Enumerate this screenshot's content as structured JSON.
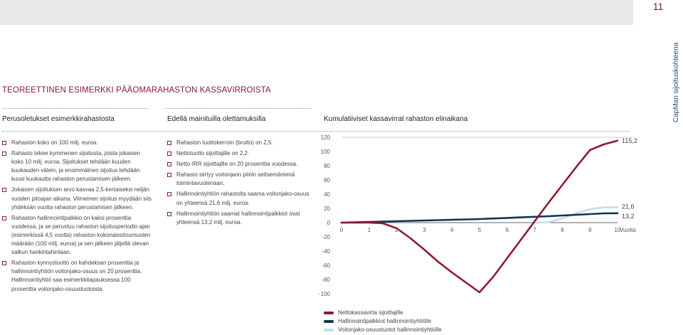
{
  "page_number": "11",
  "sidebar_label": "CapMan sijoituskohteena",
  "title": "TEOREETTINEN ESIMERKKI PÄÄOMARAHASTON KASSAVIRROISTA",
  "columns": {
    "left": "Perusoletukset esimerkkirahastosta",
    "middle": "Edellä mainituilla olettamuksilla",
    "right": "Kumulatiiviset kassavirrat rahaston elinaikana"
  },
  "left_bullets": [
    {
      "text": "Rahaston koko on 100 milj. euroa."
    },
    {
      "text": "Rahasto tekee kymmenen sijoitusta, joista jokaisen koko 10 milj. euroa. Sijoitukset tehdään kuuden kuukauden välein, ja ensimmäinen sijoitus tehdään kuusi kuukautta rahaston perustamisen jälkeen."
    },
    {
      "text": "Jokaisen sijoituksen arvo kasvaa 2,5-kertaiseksi neljän vuoden pitoajan aikana. Viimeinen sijoitus myydään siis yhdeksän vuotta rahaston perustamisen jälkeen."
    },
    {
      "text": "Rahaston hallinnointipalkkio on kaksi prosenttia vuodessa, ja se perustuu rahaston sijoitusperiodin ajan (esimerkissä 4,5 vuotta) rahaston kokonaissitoumusten määrään (100 milj. euroa) ja sen jälkeen jäljellä olevan salkun hankintahintaan."
    },
    {
      "text": "Rahaston kynnystuotto on kahdeksan prosenttia ja hallinnointiyhtiön voitonjako-osuus on 20 prosenttia. Hallinnointiyhtiö saa esimerkkitapauksessa 100 prosenttia voitonjako-osuustuotoista."
    }
  ],
  "middle_bullets": [
    {
      "text": "Rahaston tuottokerroin (brutto) on 2,5."
    },
    {
      "text": "Nettotuotto sijoittajille on 2,2."
    },
    {
      "text": "Netto-IRR sijoittajille on 20 prosenttia vuodessa."
    },
    {
      "text": "Rahasto siirtyy voitonjaon piiriin seitsemäntenä toimintavuotenaan."
    },
    {
      "text": "Hallinnointiyhtiön rahastolta saama voitonjako-osuus on yhteensä 21,6 milj. euroa."
    },
    {
      "text": "Hallinnointiyhtiön saamat hallinnointipalkkiot ovat yhteensä 13,2 milj. euroa."
    }
  ],
  "chart_data": {
    "type": "line",
    "x": [
      0,
      0.5,
      1,
      1.5,
      2,
      2.5,
      3,
      3.5,
      4,
      4.5,
      5,
      5.5,
      6,
      6.5,
      7,
      7.5,
      8,
      8.5,
      9,
      9.5,
      10
    ],
    "xticks": [
      "0",
      "1",
      "2",
      "3",
      "4",
      "5",
      "6",
      "7",
      "8",
      "9",
      "10"
    ],
    "xlabel": "Vuotta",
    "yticks": [
      "120",
      "100",
      "80",
      "60",
      "40",
      "20",
      "0",
      "-20",
      "-40",
      "-60",
      "-80",
      "-100"
    ],
    "ylim": [
      -100,
      120
    ],
    "series": [
      {
        "name": "Nettokassavirta sijoittajille",
        "color": "#8c1b2f",
        "values": [
          0,
          0,
          0,
          -1,
          -8,
          -22,
          -38,
          -55,
          -70,
          -84,
          -98,
          -76,
          -50,
          -24,
          2,
          28,
          53,
          78,
          102,
          110,
          115.2
        ]
      },
      {
        "name": "Hallinnointipalkkiot hallinnointiyhtiölle",
        "color": "#0f3450",
        "values": [
          0,
          0.5,
          1,
          1.5,
          2,
          2.5,
          3,
          3.5,
          4,
          4.5,
          5,
          5.8,
          6.6,
          7.4,
          8.2,
          9,
          10,
          11,
          12,
          13,
          13.2
        ]
      },
      {
        "name": "Voitonjako-osuustuotot hallinnointiyhtiölle",
        "color": "#c5dced",
        "values": [
          null,
          null,
          null,
          null,
          null,
          null,
          null,
          null,
          null,
          null,
          null,
          null,
          null,
          null,
          0,
          0.5,
          6,
          13,
          19,
          21.3,
          21.6
        ]
      }
    ],
    "end_labels": [
      "115,2",
      "21,6",
      "13,2"
    ]
  },
  "legend": [
    {
      "label": "Nettokassavirta sijoittajille",
      "color": "#8c1b2f"
    },
    {
      "label": "Hallinnointipalkkiot hallinnointiyhtiölle",
      "color": "#0f3450"
    },
    {
      "label": "Voitonjako-osuustuotot hallinnointiyhtiölle",
      "color": "#c5dced"
    }
  ]
}
